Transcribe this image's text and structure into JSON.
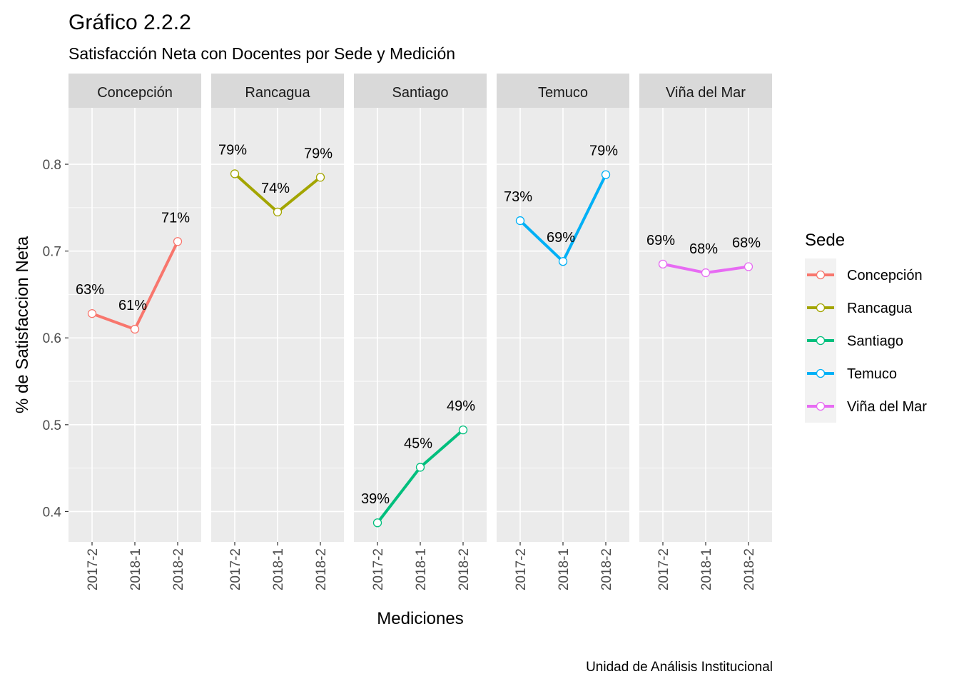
{
  "chart_data": {
    "type": "line",
    "title": "Gráfico 2.2.2",
    "subtitle": "Satisfacción Neta con Docentes por Sede y Medición",
    "xlabel": "Mediciones",
    "ylabel": "% de Satisfaccion Neta",
    "caption": "Unidad de Análisis Institucional",
    "categories": [
      "2017-2",
      "2018-1",
      "2018-2"
    ],
    "ylim": [
      0.365,
      0.865
    ],
    "yticks": [
      0.4,
      0.5,
      0.6,
      0.7,
      0.8
    ],
    "ytick_labels": [
      "0.4",
      "0.5",
      "0.6",
      "0.7",
      "0.8"
    ],
    "facet_by": "Sede",
    "grid": true,
    "legend": {
      "title": "Sede",
      "position": "right"
    },
    "series": [
      {
        "name": "Concepción",
        "color": "#F8766D",
        "values": [
          0.628,
          0.61,
          0.711
        ],
        "labels": [
          "63%",
          "61%",
          "71%"
        ]
      },
      {
        "name": "Rancagua",
        "color": "#A3A500",
        "values": [
          0.789,
          0.745,
          0.785
        ],
        "labels": [
          "79%",
          "74%",
          "79%"
        ]
      },
      {
        "name": "Santiago",
        "color": "#00BF7D",
        "values": [
          0.387,
          0.451,
          0.494
        ],
        "labels": [
          "39%",
          "45%",
          "49%"
        ]
      },
      {
        "name": "Temuco",
        "color": "#00B0F6",
        "values": [
          0.735,
          0.688,
          0.788
        ],
        "labels": [
          "73%",
          "69%",
          "79%"
        ]
      },
      {
        "name": "Viña del Mar",
        "color": "#E76BF3",
        "values": [
          0.685,
          0.675,
          0.682
        ],
        "labels": [
          "69%",
          "68%",
          "68%"
        ]
      }
    ]
  }
}
